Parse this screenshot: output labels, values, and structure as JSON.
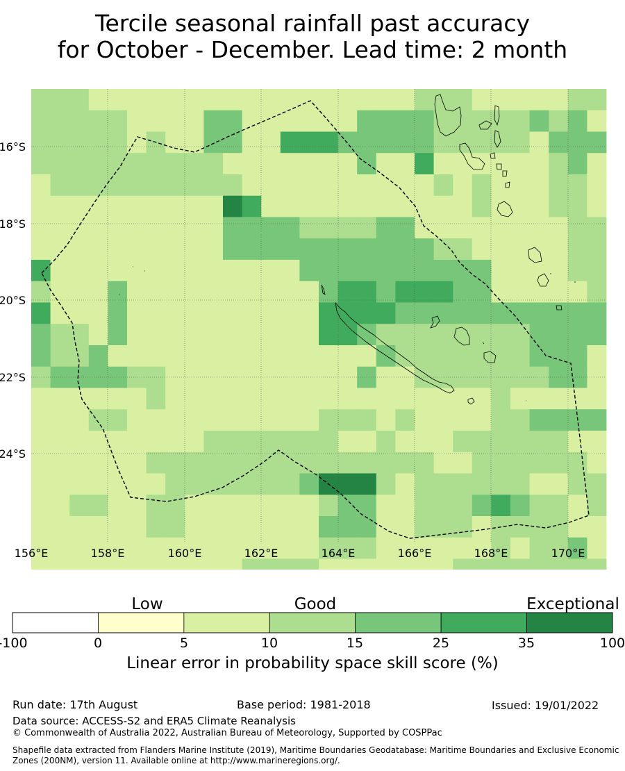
{
  "title": {
    "line1": "Tercile seasonal rainfall past accuracy",
    "line2": "for October - December. Lead time: 2 month"
  },
  "map": {
    "lat_labels": [
      "16°S",
      "18°S",
      "20°S",
      "22°S",
      "24°S"
    ],
    "lon_labels": [
      "156°E",
      "158°E",
      "160°E",
      "162°E",
      "164°E",
      "166°E",
      "168°E",
      "170°E"
    ],
    "grid_classes": [
      "111000000000000000001110000011",
      "111110000220000002222111112120",
      "111110100220033322222111110222",
      "111111111100000002003000000120",
      "011111111110000000000101000110",
      "000000000043000000000001000110",
      "000000000022221111220000000011",
      "000000000022222222222110000011",
      "300000000000002222222222000011",
      "100020000000000233233322000001",
      "300020000000000333322222222222",
      "211020000000000332111111112222",
      "211200000000000000211111112220",
      "122221100000000002001111111220",
      "000000100000000000000000100000",
      "000110000000000111010000112222",
      "000000000111111100100011111100",
      "000000111111111111111001111110",
      "000000011111112444101111110011",
      "001100110000000122001112321101",
      "000000110000000222001110111100",
      "000000000000000111000000101120",
      "000000000001111000000011111111",
      "000000000001112000000112222100",
      "000000000011111000000111111111"
    ],
    "category_colors": [
      "#ffffff",
      "#ffffcc",
      "#d9f0a3",
      "#addd8e",
      "#78c679",
      "#41ab5d",
      "#238443"
    ]
  },
  "legend": {
    "categories": [
      "Low",
      "Good",
      "Exceptional"
    ],
    "ticks": [
      "-100",
      "0",
      "5",
      "10",
      "15",
      "25",
      "35",
      "100"
    ],
    "colors": [
      "#ffffff",
      "#ffffcc",
      "#d9f0a3",
      "#addd8e",
      "#78c679",
      "#41ab5d",
      "#238443"
    ],
    "title": "Linear error in probability space skill score (%)"
  },
  "footer": {
    "run_date": "Run date: 17th August",
    "base_period": "Base period: 1981-2018",
    "issued": "Issued: 19/01/2022",
    "data_source": "Data source: ACCESS-S2 and ERA5 Climate Reanalysis",
    "copyright": "© Commonwealth of Australia 2022, Australian Bureau of Meteorology, Supported by COSPPac",
    "shapefile": "Shapefile data extracted from Flanders Marine Institute (2019), Maritime Boundaries Geodatabase: Maritime Boundaries and Exclusive Economic Zones (200NM), version 11. Available online at http://www.marineregions.org/."
  }
}
